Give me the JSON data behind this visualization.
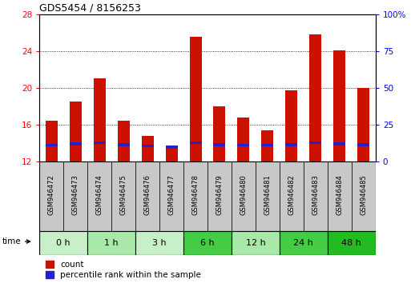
{
  "title": "GDS5454 / 8156253",
  "samples": [
    "GSM946472",
    "GSM946473",
    "GSM946474",
    "GSM946475",
    "GSM946476",
    "GSM946477",
    "GSM946478",
    "GSM946479",
    "GSM946480",
    "GSM946481",
    "GSM946482",
    "GSM946483",
    "GSM946484",
    "GSM946485"
  ],
  "count_values": [
    16.4,
    18.5,
    21.0,
    16.4,
    14.8,
    13.5,
    25.5,
    18.0,
    16.8,
    15.4,
    19.7,
    25.8,
    24.1,
    20.0
  ],
  "percentile_values": [
    13.75,
    13.9,
    14.0,
    13.8,
    13.65,
    13.55,
    14.0,
    13.8,
    13.75,
    13.75,
    13.8,
    14.0,
    13.9,
    13.8
  ],
  "time_groups": [
    {
      "label": "0 h",
      "start": 0,
      "end": 1,
      "color": "#c8f0c8"
    },
    {
      "label": "1 h",
      "start": 2,
      "end": 3,
      "color": "#a8e8a8"
    },
    {
      "label": "3 h",
      "start": 4,
      "end": 5,
      "color": "#c8f0c8"
    },
    {
      "label": "6 h",
      "start": 6,
      "end": 7,
      "color": "#44cc44"
    },
    {
      "label": "12 h",
      "start": 8,
      "end": 9,
      "color": "#a8e8a8"
    },
    {
      "label": "24 h",
      "start": 10,
      "end": 11,
      "color": "#44cc44"
    },
    {
      "label": "48 h",
      "start": 12,
      "end": 13,
      "color": "#22bb22"
    }
  ],
  "ylim_left": [
    12,
    28
  ],
  "ylim_right": [
    0,
    100
  ],
  "yticks_left": [
    12,
    16,
    20,
    24,
    28
  ],
  "yticks_right": [
    0,
    25,
    50,
    75,
    100
  ],
  "bar_color": "#cc1100",
  "blue_color": "#2222cc",
  "sample_bg": "#c8c8c8",
  "bar_width": 0.5
}
